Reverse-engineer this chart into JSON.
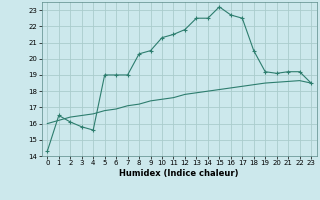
{
  "title": "",
  "xlabel": "Humidex (Indice chaleur)",
  "bg_color": "#cce8ec",
  "line_color": "#2d7d6e",
  "grid_color": "#aacccc",
  "xlim": [
    -0.5,
    23.5
  ],
  "ylim": [
    14,
    23.5
  ],
  "xticks": [
    0,
    1,
    2,
    3,
    4,
    5,
    6,
    7,
    8,
    9,
    10,
    11,
    12,
    13,
    14,
    15,
    16,
    17,
    18,
    19,
    20,
    21,
    22,
    23
  ],
  "yticks": [
    14,
    15,
    16,
    17,
    18,
    19,
    20,
    21,
    22,
    23
  ],
  "line1_x": [
    0,
    1,
    2,
    3,
    4,
    5,
    6,
    7,
    8,
    9,
    10,
    11,
    12,
    13,
    14,
    15,
    16,
    17,
    18,
    19,
    20,
    21,
    22,
    23
  ],
  "line1_y": [
    14.3,
    16.5,
    16.1,
    15.8,
    15.6,
    19.0,
    19.0,
    19.0,
    20.3,
    20.5,
    21.3,
    21.5,
    21.8,
    22.5,
    22.5,
    23.2,
    22.7,
    22.5,
    20.5,
    19.2,
    19.1,
    19.2,
    19.2,
    18.5
  ],
  "line2_x": [
    0,
    1,
    2,
    3,
    4,
    5,
    6,
    7,
    8,
    9,
    10,
    11,
    12,
    13,
    14,
    15,
    16,
    17,
    18,
    19,
    20,
    21,
    22,
    23
  ],
  "line2_y": [
    16.0,
    16.2,
    16.4,
    16.5,
    16.6,
    16.8,
    16.9,
    17.1,
    17.2,
    17.4,
    17.5,
    17.6,
    17.8,
    17.9,
    18.0,
    18.1,
    18.2,
    18.3,
    18.4,
    18.5,
    18.55,
    18.6,
    18.65,
    18.5
  ],
  "xlabel_fontsize": 6,
  "tick_fontsize": 5
}
